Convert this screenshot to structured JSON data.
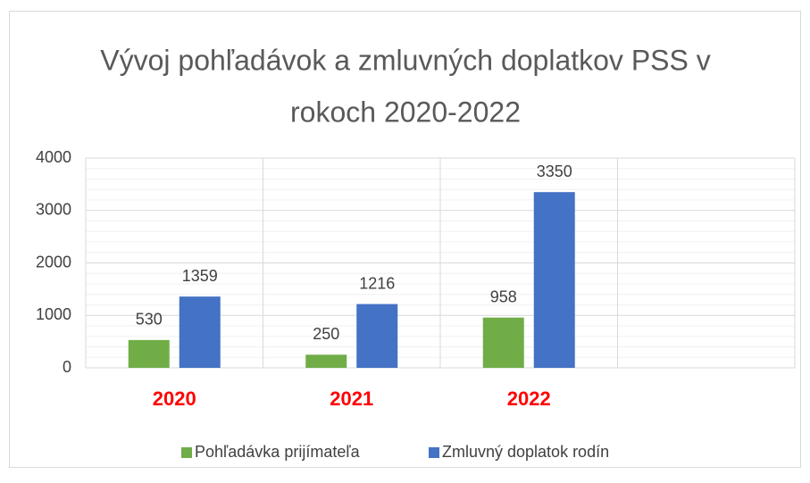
{
  "chart_data": {
    "type": "bar",
    "title": [
      "Vývoj pohľadávok a zmluvných doplatkov PSS v",
      "rokoch 2020-2022"
    ],
    "categories": [
      "2020",
      "2021",
      "2022",
      null
    ],
    "series": [
      {
        "name": "Pohľadávka prijímateľa",
        "color": "#70ad47",
        "values": [
          530,
          250,
          958,
          null
        ]
      },
      {
        "name": "Zmluvný doplatok rodín",
        "color": "#4472c4",
        "values": [
          1359,
          1216,
          3350,
          null
        ]
      }
    ],
    "ylim": [
      0,
      4000
    ],
    "yticks": [
      0,
      1000,
      2000,
      3000,
      4000
    ],
    "yminorticks": [
      200,
      400,
      600,
      800,
      1200,
      1400,
      1600,
      1800,
      2200,
      2400,
      2600,
      2800,
      3200,
      3400,
      3600,
      3800
    ],
    "grid": true,
    "legend": "bottom",
    "category_label_color": "#ff0000"
  }
}
